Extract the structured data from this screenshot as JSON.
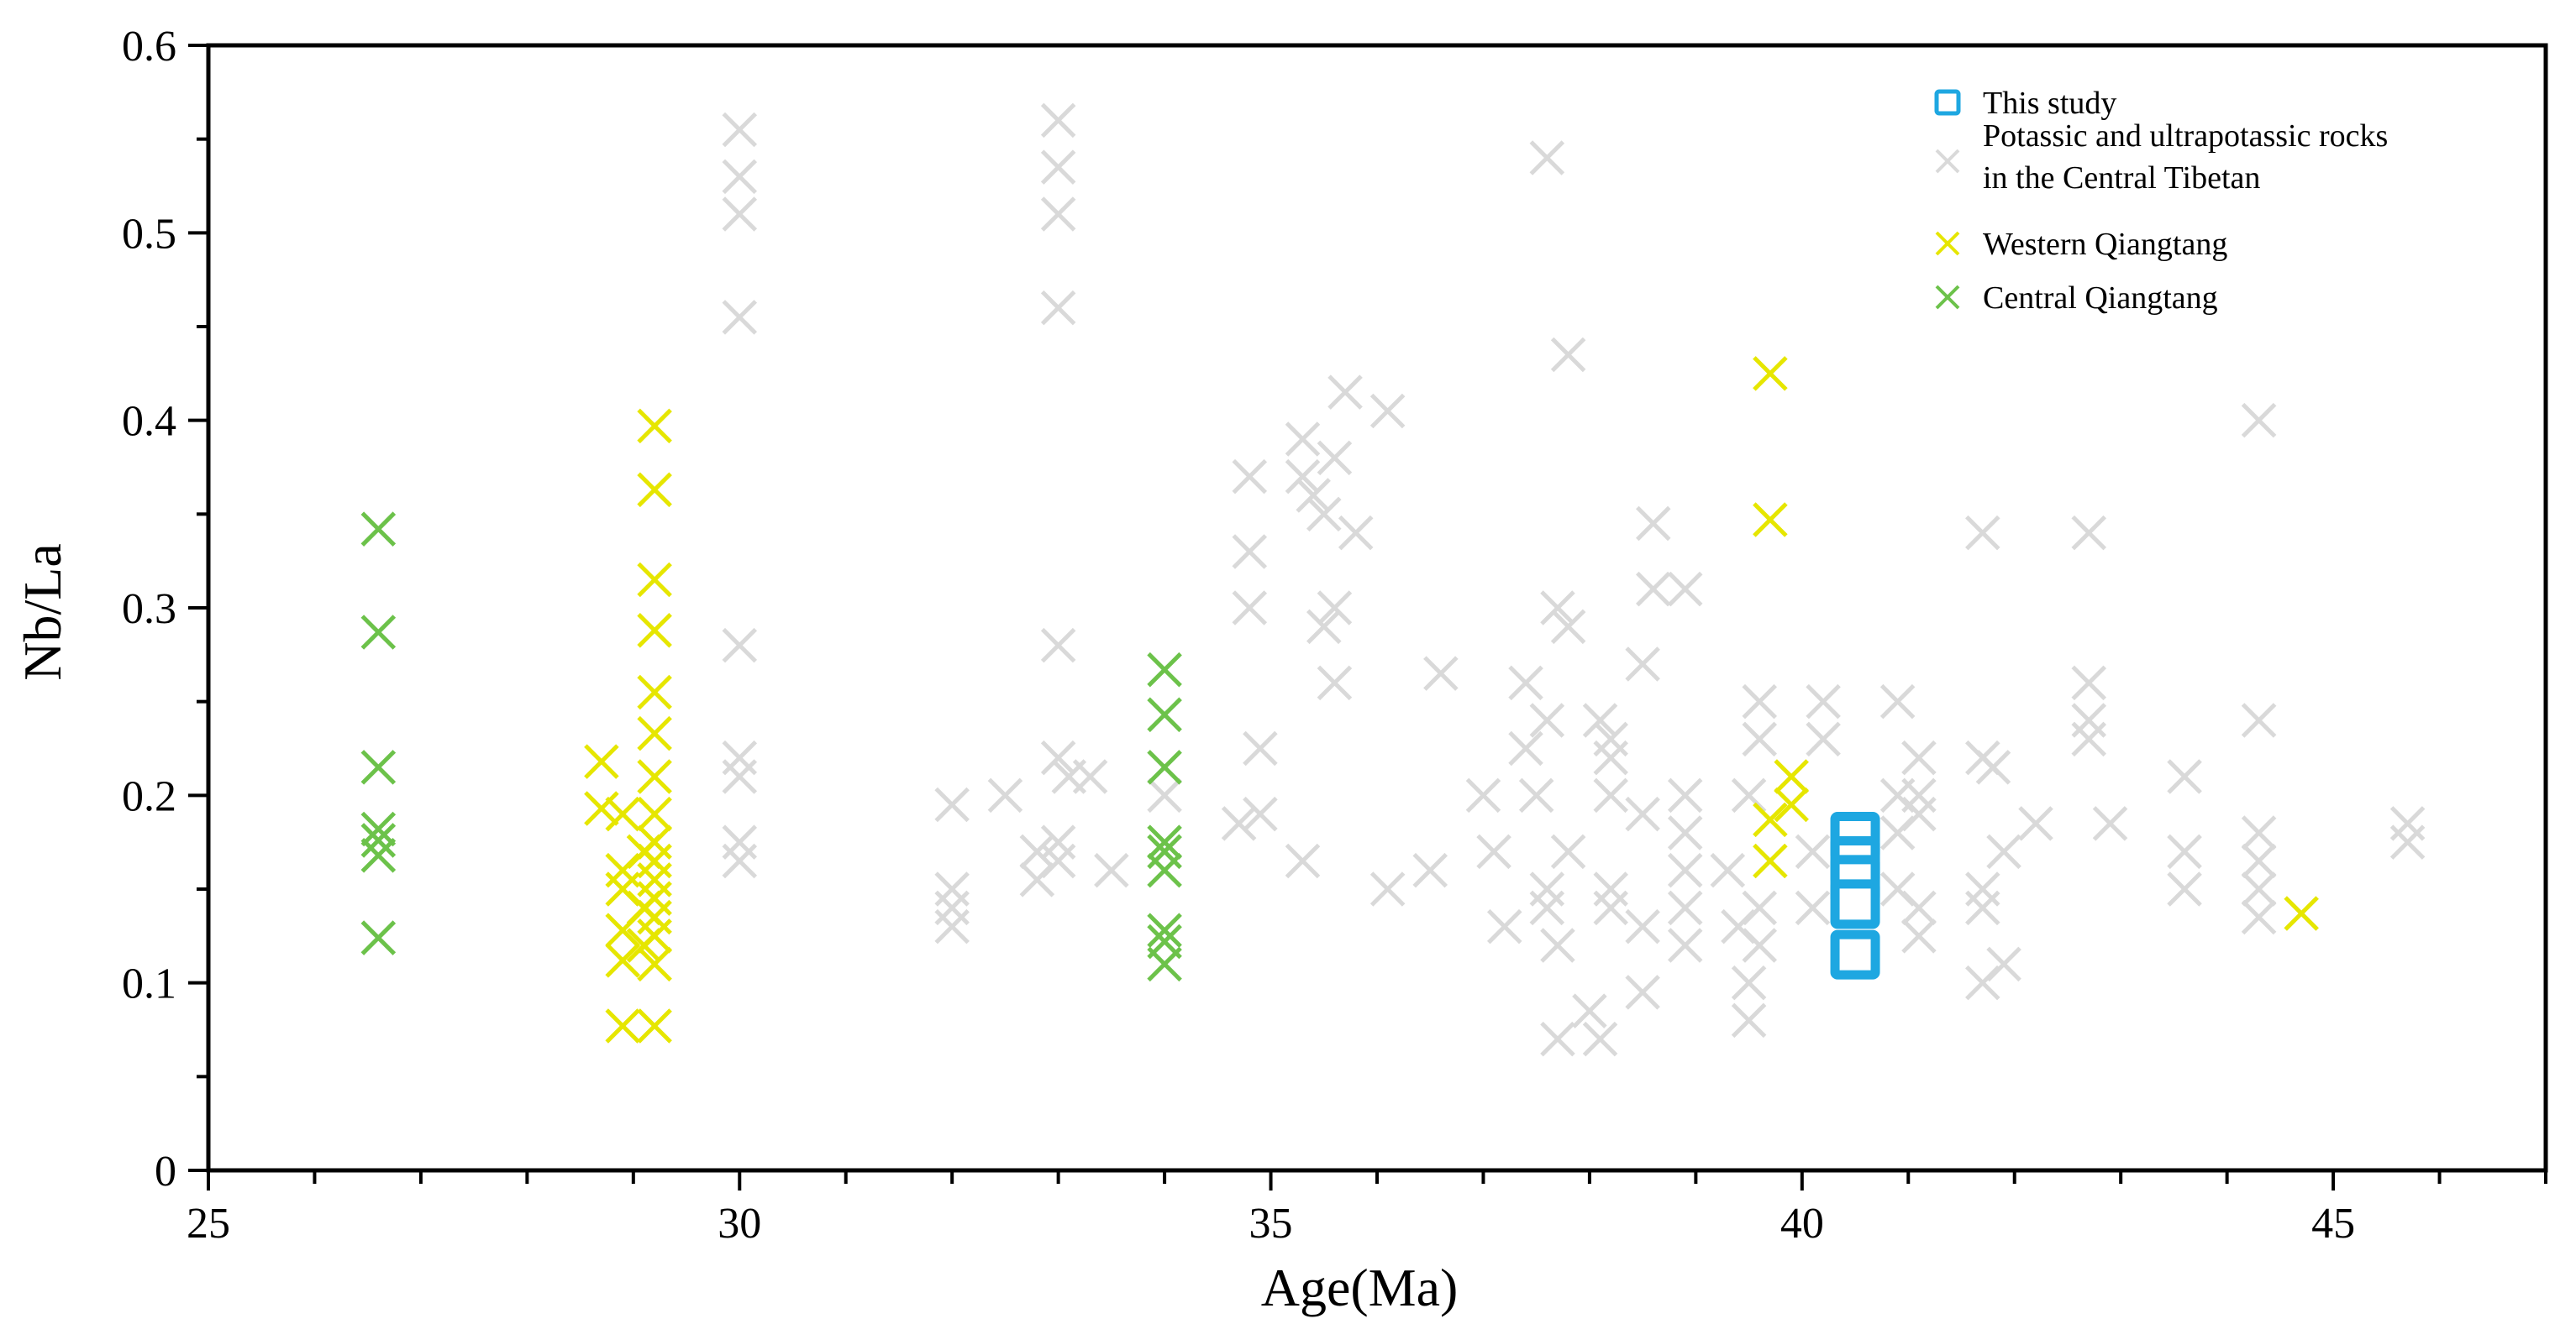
{
  "chart_data": {
    "type": "scatter",
    "title": "",
    "xlabel": "Age(Ma)",
    "ylabel": "Nb/La",
    "xlim": [
      25,
      47
    ],
    "ylim": [
      0,
      0.6
    ],
    "x_ticks": [
      25,
      30,
      35,
      40,
      45
    ],
    "x_tick_labels": [
      "25",
      "30",
      "35",
      "40",
      "45"
    ],
    "y_ticks": [
      0,
      0.1,
      0.2,
      0.3,
      0.4,
      0.5,
      0.6
    ],
    "y_tick_labels": [
      "0",
      "0.1",
      "0.2",
      "0.3",
      "0.4",
      "0.5",
      "0.6"
    ],
    "grid": false,
    "legend_position": "top-right",
    "legend": [
      {
        "label": "This study",
        "color": "#1ea7e1",
        "marker": "square"
      },
      {
        "label": "Potassic and ultrapotassic rocks",
        "label2": "in the Central Tibetan",
        "color": "#d9d9d9",
        "marker": "x"
      },
      {
        "label": "Western Qiangtang",
        "color": "#e6e600",
        "marker": "x"
      },
      {
        "label": "Central Qiangtang",
        "color": "#6cc24a",
        "marker": "x"
      }
    ],
    "series": [
      {
        "name": "Potassic and ultrapotassic rocks in the Central Tibetan",
        "color": "#d9d9d9",
        "marker": "x",
        "points": [
          [
            30.0,
            0.555
          ],
          [
            30.0,
            0.53
          ],
          [
            30.0,
            0.51
          ],
          [
            30.0,
            0.455
          ],
          [
            30.0,
            0.28
          ],
          [
            30.0,
            0.22
          ],
          [
            30.0,
            0.21
          ],
          [
            30.0,
            0.175
          ],
          [
            30.0,
            0.165
          ],
          [
            32.0,
            0.195
          ],
          [
            32.0,
            0.15
          ],
          [
            32.0,
            0.14
          ],
          [
            32.0,
            0.13
          ],
          [
            32.5,
            0.2
          ],
          [
            33.0,
            0.56
          ],
          [
            33.0,
            0.535
          ],
          [
            33.0,
            0.51
          ],
          [
            33.0,
            0.46
          ],
          [
            33.0,
            0.28
          ],
          [
            33.0,
            0.22
          ],
          [
            33.1,
            0.21
          ],
          [
            33.0,
            0.175
          ],
          [
            33.0,
            0.165
          ],
          [
            32.8,
            0.17
          ],
          [
            32.8,
            0.155
          ],
          [
            33.3,
            0.21
          ],
          [
            33.5,
            0.16
          ],
          [
            34.0,
            0.2
          ],
          [
            34.0,
            0.17
          ],
          [
            34.8,
            0.37
          ],
          [
            34.8,
            0.33
          ],
          [
            34.8,
            0.3
          ],
          [
            34.9,
            0.225
          ],
          [
            34.9,
            0.19
          ],
          [
            34.7,
            0.185
          ],
          [
            35.3,
            0.39
          ],
          [
            35.3,
            0.37
          ],
          [
            35.4,
            0.36
          ],
          [
            35.5,
            0.35
          ],
          [
            35.6,
            0.38
          ],
          [
            35.7,
            0.415
          ],
          [
            35.8,
            0.34
          ],
          [
            35.6,
            0.3
          ],
          [
            35.5,
            0.29
          ],
          [
            35.6,
            0.26
          ],
          [
            35.3,
            0.165
          ],
          [
            36.1,
            0.405
          ],
          [
            36.1,
            0.15
          ],
          [
            36.5,
            0.16
          ],
          [
            36.6,
            0.265
          ],
          [
            37.0,
            0.2
          ],
          [
            37.1,
            0.17
          ],
          [
            37.2,
            0.13
          ],
          [
            37.4,
            0.26
          ],
          [
            37.4,
            0.225
          ],
          [
            37.5,
            0.2
          ],
          [
            37.6,
            0.24
          ],
          [
            37.6,
            0.15
          ],
          [
            37.6,
            0.14
          ],
          [
            37.6,
            0.54
          ],
          [
            37.8,
            0.435
          ],
          [
            37.7,
            0.3
          ],
          [
            37.8,
            0.29
          ],
          [
            37.8,
            0.17
          ],
          [
            37.7,
            0.12
          ],
          [
            37.7,
            0.07
          ],
          [
            38.0,
            0.085
          ],
          [
            38.1,
            0.07
          ],
          [
            38.1,
            0.24
          ],
          [
            38.2,
            0.23
          ],
          [
            38.2,
            0.22
          ],
          [
            38.2,
            0.2
          ],
          [
            38.2,
            0.15
          ],
          [
            38.2,
            0.14
          ],
          [
            38.5,
            0.27
          ],
          [
            38.6,
            0.31
          ],
          [
            38.6,
            0.345
          ],
          [
            38.5,
            0.19
          ],
          [
            38.5,
            0.13
          ],
          [
            38.5,
            0.095
          ],
          [
            38.9,
            0.31
          ],
          [
            38.9,
            0.2
          ],
          [
            38.9,
            0.18
          ],
          [
            38.9,
            0.16
          ],
          [
            38.9,
            0.14
          ],
          [
            38.9,
            0.12
          ],
          [
            39.3,
            0.16
          ],
          [
            39.4,
            0.13
          ],
          [
            39.5,
            0.1
          ],
          [
            39.5,
            0.08
          ],
          [
            39.5,
            0.2
          ],
          [
            39.6,
            0.25
          ],
          [
            39.6,
            0.23
          ],
          [
            39.6,
            0.14
          ],
          [
            39.6,
            0.12
          ],
          [
            40.2,
            0.25
          ],
          [
            40.2,
            0.23
          ],
          [
            40.1,
            0.17
          ],
          [
            40.1,
            0.14
          ],
          [
            40.9,
            0.25
          ],
          [
            40.9,
            0.2
          ],
          [
            40.9,
            0.18
          ],
          [
            40.9,
            0.15
          ],
          [
            41.1,
            0.22
          ],
          [
            41.1,
            0.2
          ],
          [
            41.1,
            0.19
          ],
          [
            41.1,
            0.14
          ],
          [
            41.1,
            0.125
          ],
          [
            41.7,
            0.34
          ],
          [
            41.7,
            0.22
          ],
          [
            41.7,
            0.15
          ],
          [
            41.7,
            0.14
          ],
          [
            41.7,
            0.1
          ],
          [
            41.8,
            0.215
          ],
          [
            41.9,
            0.17
          ],
          [
            41.9,
            0.11
          ],
          [
            42.2,
            0.185
          ],
          [
            42.7,
            0.34
          ],
          [
            42.7,
            0.26
          ],
          [
            42.7,
            0.24
          ],
          [
            42.7,
            0.23
          ],
          [
            42.9,
            0.185
          ],
          [
            43.6,
            0.21
          ],
          [
            43.6,
            0.17
          ],
          [
            43.6,
            0.15
          ],
          [
            44.3,
            0.4
          ],
          [
            44.3,
            0.24
          ],
          [
            44.3,
            0.18
          ],
          [
            44.3,
            0.165
          ],
          [
            44.3,
            0.15
          ],
          [
            44.3,
            0.135
          ],
          [
            45.7,
            0.185
          ],
          [
            45.7,
            0.175
          ]
        ]
      },
      {
        "name": "Western Qiangtang",
        "color": "#e6e600",
        "marker": "x",
        "points": [
          [
            29.2,
            0.397
          ],
          [
            29.2,
            0.363
          ],
          [
            29.2,
            0.315
          ],
          [
            29.2,
            0.288
          ],
          [
            29.2,
            0.255
          ],
          [
            29.2,
            0.233
          ],
          [
            29.2,
            0.21
          ],
          [
            29.2,
            0.19
          ],
          [
            29.2,
            0.175
          ],
          [
            29.2,
            0.165
          ],
          [
            29.2,
            0.155
          ],
          [
            29.2,
            0.145
          ],
          [
            29.2,
            0.135
          ],
          [
            29.2,
            0.125
          ],
          [
            29.2,
            0.11
          ],
          [
            29.2,
            0.077
          ],
          [
            28.7,
            0.218
          ],
          [
            28.7,
            0.193
          ],
          [
            28.9,
            0.19
          ],
          [
            28.9,
            0.16
          ],
          [
            28.9,
            0.15
          ],
          [
            28.9,
            0.128
          ],
          [
            28.9,
            0.112
          ],
          [
            28.9,
            0.077
          ],
          [
            29.1,
            0.17
          ],
          [
            29.1,
            0.14
          ],
          [
            29.1,
            0.12
          ],
          [
            39.7,
            0.425
          ],
          [
            39.7,
            0.347
          ],
          [
            39.7,
            0.187
          ],
          [
            39.7,
            0.165
          ],
          [
            39.9,
            0.21
          ],
          [
            39.9,
            0.195
          ],
          [
            44.7,
            0.137
          ]
        ]
      },
      {
        "name": "Central Qiangtang",
        "color": "#6cc24a",
        "marker": "x",
        "points": [
          [
            26.6,
            0.342
          ],
          [
            26.6,
            0.287
          ],
          [
            26.6,
            0.215
          ],
          [
            26.6,
            0.182
          ],
          [
            26.6,
            0.176
          ],
          [
            26.6,
            0.168
          ],
          [
            26.6,
            0.124
          ],
          [
            34.0,
            0.267
          ],
          [
            34.0,
            0.243
          ],
          [
            34.0,
            0.215
          ],
          [
            34.0,
            0.175
          ],
          [
            34.0,
            0.17
          ],
          [
            34.0,
            0.16
          ],
          [
            34.0,
            0.128
          ],
          [
            34.0,
            0.122
          ],
          [
            34.0,
            0.11
          ]
        ]
      },
      {
        "name": "This study",
        "color": "#1ea7e1",
        "marker": "square",
        "points": [
          [
            40.5,
            0.178
          ],
          [
            40.5,
            0.165
          ],
          [
            40.5,
            0.155
          ],
          [
            40.5,
            0.142
          ],
          [
            40.5,
            0.115
          ]
        ]
      }
    ]
  }
}
